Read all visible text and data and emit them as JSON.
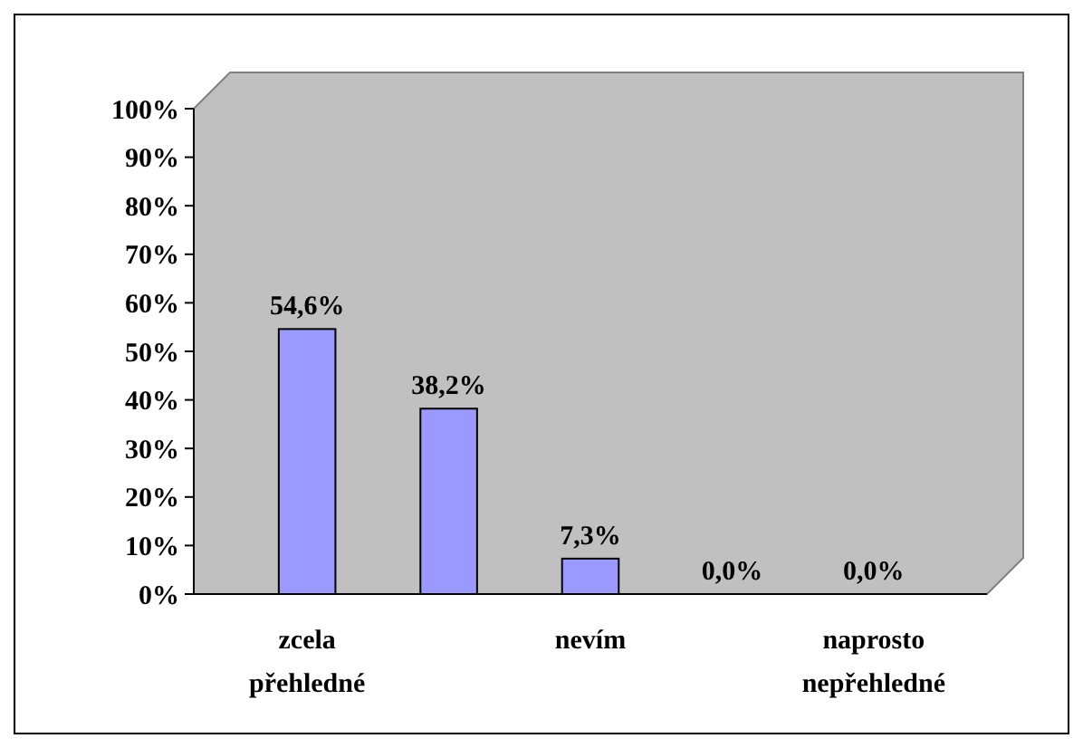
{
  "chart_data": {
    "type": "bar",
    "categories": [
      "zcela přehledné",
      null,
      "nevím",
      null,
      "naprosto nepřehledné"
    ],
    "values": [
      54.6,
      38.2,
      7.3,
      0,
      0
    ],
    "value_labels": [
      "54,6%",
      "38,2%",
      "7,3%",
      "0,0%",
      "0,0%"
    ],
    "color": "#9999ff",
    "ylim": [
      0,
      100
    ],
    "yticks": [
      {
        "value": 0,
        "label": "0%"
      },
      {
        "value": 10,
        "label": "10%"
      },
      {
        "value": 20,
        "label": "20%"
      },
      {
        "value": 30,
        "label": "30%"
      },
      {
        "value": 40,
        "label": "40%"
      },
      {
        "value": 50,
        "label": "50%"
      },
      {
        "value": 60,
        "label": "60%"
      },
      {
        "value": 70,
        "label": "70%"
      },
      {
        "value": 80,
        "label": "80%"
      },
      {
        "value": 90,
        "label": "90%"
      },
      {
        "value": 100,
        "label": "100%"
      }
    ]
  }
}
